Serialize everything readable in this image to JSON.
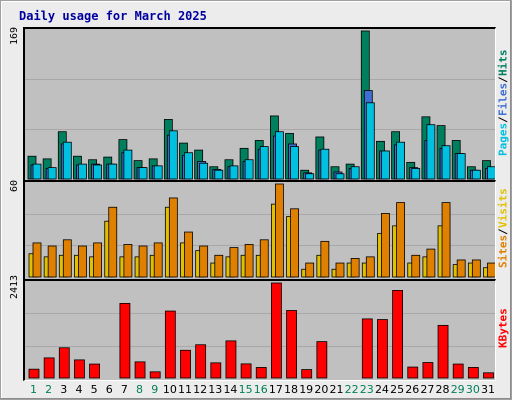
{
  "title": "Daily usage for March 2025",
  "colors": {
    "pages": "#00c0e0",
    "files": "#3f6fd4",
    "hits": "#007f5f",
    "sites": "#e08000",
    "visits": "#e0c000",
    "kbytes": "#ff0000",
    "weekday": "#000000",
    "weekend": "#00805a"
  },
  "legends": {
    "hits_panel": [
      "Pages",
      "Files",
      "Hits"
    ],
    "visits_panel": [
      "Sites",
      "Visits"
    ],
    "kbytes_panel": [
      "KBytes"
    ]
  },
  "chart_data": [
    {
      "type": "bar",
      "panel": "hits",
      "ymax_label": "169",
      "ylim": [
        0,
        169
      ],
      "categories": [
        "1",
        "2",
        "3",
        "4",
        "5",
        "6",
        "7",
        "8",
        "9",
        "10",
        "11",
        "12",
        "13",
        "14",
        "15",
        "16",
        "17",
        "18",
        "19",
        "20",
        "21",
        "22",
        "23",
        "24",
        "25",
        "26",
        "27",
        "28",
        "29",
        "30",
        "31"
      ],
      "series": [
        {
          "name": "Hits",
          "values": [
            26,
            23,
            54,
            26,
            22,
            25,
            45,
            21,
            23,
            68,
            41,
            33,
            14,
            22,
            35,
            44,
            72,
            52,
            10,
            48,
            14,
            17,
            169,
            43,
            54,
            19,
            71,
            61,
            44,
            14,
            21
          ]
        },
        {
          "name": "Files",
          "values": [
            16,
            12,
            40,
            16,
            17,
            17,
            30,
            13,
            15,
            50,
            27,
            20,
            11,
            14,
            20,
            34,
            49,
            40,
            7,
            33,
            8,
            12,
            101,
            32,
            39,
            13,
            44,
            35,
            29,
            10,
            12
          ]
        },
        {
          "name": "Pages",
          "values": [
            17,
            13,
            42,
            17,
            16,
            17,
            33,
            13,
            15,
            55,
            30,
            18,
            10,
            15,
            22,
            37,
            54,
            37,
            6,
            34,
            6,
            14,
            87,
            32,
            42,
            12,
            62,
            38,
            29,
            10,
            14
          ]
        }
      ]
    },
    {
      "type": "bar",
      "panel": "visits",
      "ymax_label": "60",
      "ylim": [
        0,
        60
      ],
      "categories": [
        "1",
        "2",
        "3",
        "4",
        "5",
        "6",
        "7",
        "8",
        "9",
        "10",
        "11",
        "12",
        "13",
        "14",
        "15",
        "16",
        "17",
        "18",
        "19",
        "20",
        "21",
        "22",
        "23",
        "24",
        "25",
        "26",
        "27",
        "28",
        "29",
        "30",
        "31"
      ],
      "series": [
        {
          "name": "Visits",
          "values": [
            15,
            13,
            14,
            14,
            13,
            36,
            13,
            13,
            14,
            45,
            22,
            17,
            9,
            13,
            14,
            14,
            47,
            39,
            5,
            14,
            5,
            9,
            9,
            28,
            33,
            9,
            13,
            33,
            8,
            9,
            6
          ]
        },
        {
          "name": "Sites",
          "values": [
            22,
            20,
            24,
            20,
            22,
            45,
            21,
            20,
            22,
            51,
            29,
            20,
            14,
            19,
            21,
            24,
            60,
            44,
            9,
            23,
            9,
            12,
            13,
            41,
            48,
            14,
            18,
            48,
            11,
            11,
            9
          ]
        }
      ]
    },
    {
      "type": "bar",
      "panel": "kbytes",
      "ymax_label": "2413",
      "ylim": [
        0,
        2413
      ],
      "categories": [
        "1",
        "2",
        "3",
        "4",
        "5",
        "6",
        "7",
        "8",
        "9",
        "10",
        "11",
        "12",
        "13",
        "14",
        "15",
        "16",
        "17",
        "18",
        "19",
        "20",
        "21",
        "22",
        "23",
        "24",
        "25",
        "26",
        "27",
        "28",
        "29",
        "30",
        "31"
      ],
      "series": [
        {
          "name": "KBytes",
          "values": [
            224,
            511,
            768,
            460,
            354,
            0,
            1895,
            410,
            157,
            1700,
            704,
            845,
            385,
            943,
            359,
            268,
            2413,
            1714,
            214,
            924,
            0,
            0,
            1501,
            1485,
            2225,
            278,
            393,
            1337,
            354,
            268,
            132
          ]
        }
      ]
    }
  ]
}
